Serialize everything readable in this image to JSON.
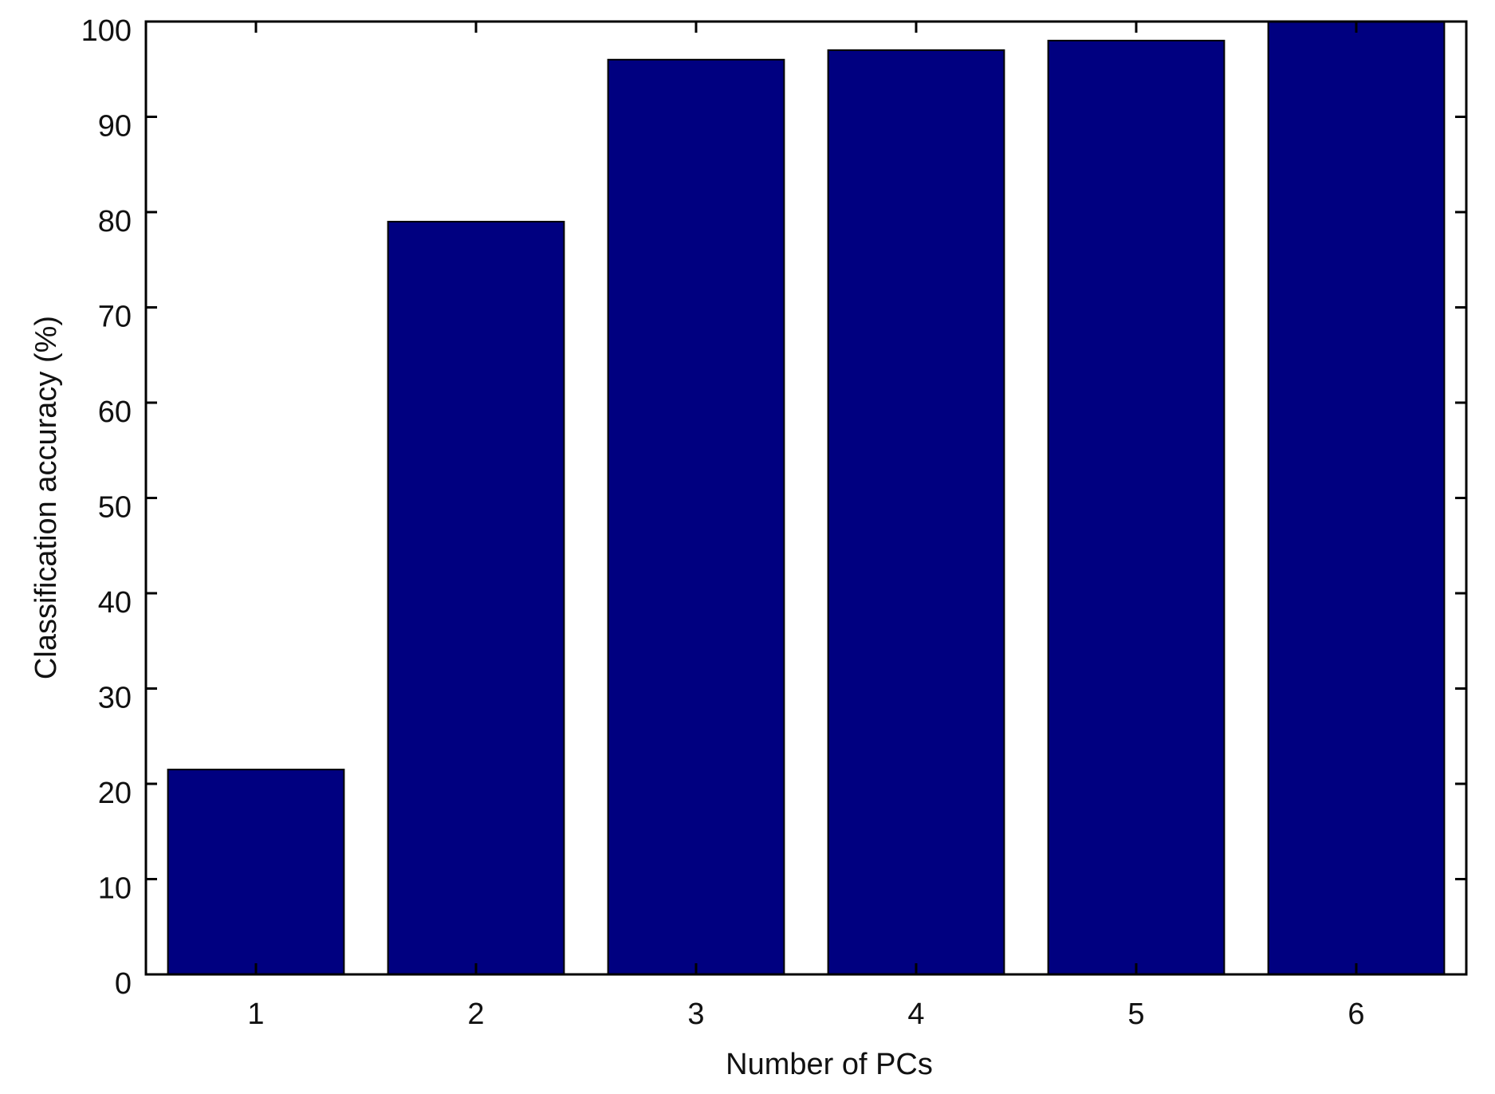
{
  "chart_data": {
    "type": "bar",
    "x_label": "Number of PCs",
    "y_label": "Classification accuracy (%)",
    "categories": [
      "1",
      "2",
      "3",
      "4",
      "5",
      "6"
    ],
    "values": [
      21.5,
      79,
      96,
      97,
      98,
      100
    ],
    "color": "#000080",
    "ylim": [
      0,
      100
    ],
    "yticks": [
      0,
      10,
      20,
      30,
      40,
      50,
      60,
      70,
      80,
      90,
      100
    ],
    "grid": false
  }
}
